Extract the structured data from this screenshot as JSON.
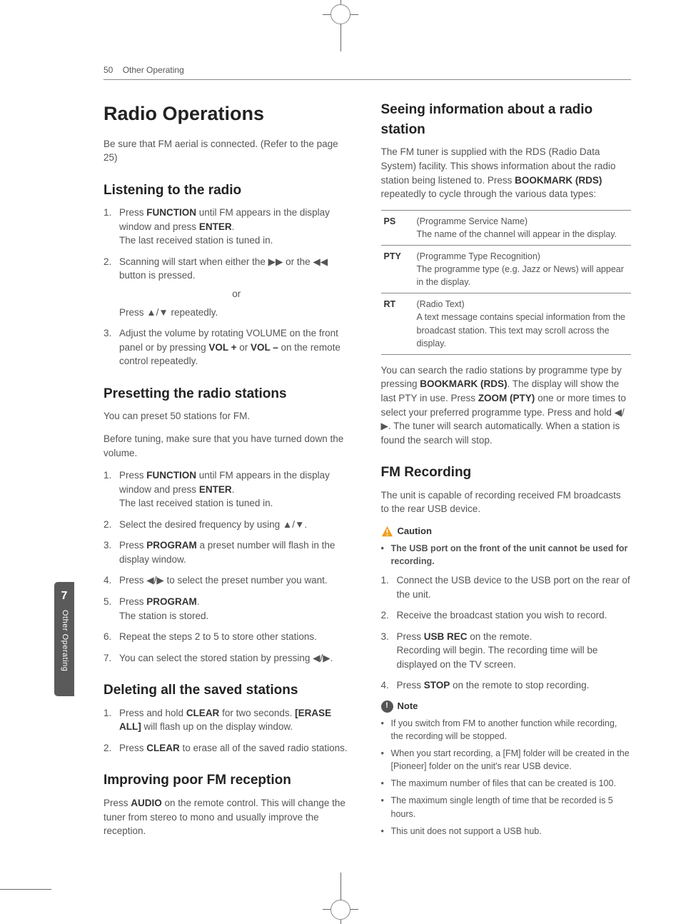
{
  "header": {
    "page_num": "50",
    "section": "Other Operating"
  },
  "sidetab": {
    "num": "7",
    "label": "Other Operating"
  },
  "left": {
    "h1": "Radio Operations",
    "intro": "Be sure that FM aerial is connected. (Refer to the page 25)",
    "listening": {
      "title": "Listening to the radio",
      "s1a": "Press ",
      "s1b": "FUNCTION",
      "s1c": " until FM appears in the display window and press ",
      "s1d": "ENTER",
      "s1e": ".\nThe last received station is tuned in.",
      "s2a": "Scanning will start when either the ▶▶ or the ◀◀ button is pressed.",
      "s2_or": "or",
      "s2b": "Press ▲/▼ repeatedly.",
      "s3a": "Adjust the volume by rotating VOLUME on the front panel or by pressing ",
      "s3b": "VOL +",
      "s3c": " or ",
      "s3d": "VOL –",
      "s3e": " on the remote control repeatedly."
    },
    "preset": {
      "title": "Presetting the radio stations",
      "p1": "You can preset 50 stations for FM.",
      "p2": "Before tuning, make sure that you have turned down the volume.",
      "s1a": "Press ",
      "s1b": "FUNCTION",
      "s1c": " until FM appears in the display window and press ",
      "s1d": "ENTER",
      "s1e": ".\nThe last received station is tuned in.",
      "s2": "Select the desired frequency by using ▲/▼.",
      "s3a": "Press ",
      "s3b": "PROGRAM",
      "s3c": " a preset number will flash in the display window.",
      "s4": "Press ◀/▶ to select the preset number you want.",
      "s5a": "Press ",
      "s5b": "PROGRAM",
      "s5c": ".\nThe station is stored.",
      "s6": "Repeat the steps 2 to 5 to store other stations.",
      "s7": "You can select the stored station by pressing ◀/▶."
    },
    "delete": {
      "title": "Deleting all the saved stations",
      "s1a": "Press and hold ",
      "s1b": "CLEAR",
      "s1c": " for two seconds. ",
      "s1d": "[ERASE ALL]",
      "s1e": " will flash up on the display window.",
      "s2a": "Press ",
      "s2b": "CLEAR",
      "s2c": " to erase all of the saved radio stations."
    },
    "improve": {
      "title": "Improving poor FM reception",
      "p_a": "Press ",
      "p_b": "AUDIO",
      "p_c": " on the remote control. This will change the tuner from stereo to mono and usually improve the reception."
    }
  },
  "right": {
    "info": {
      "title": "Seeing information about a radio station",
      "p_a": "The FM tuner is supplied with the RDS (Radio Data System) facility. This shows information about the radio station being listened to. Press ",
      "p_b": "BOOKMARK (RDS)",
      "p_c": " repeatedly to cycle through the various data types:",
      "rows": [
        {
          "k": "PS",
          "v": "(Programme Service Name)\nThe name of the channel will appear in the display."
        },
        {
          "k": "PTY",
          "v": "(Programme Type Recognition)\nThe programme type (e.g. Jazz or News) will appear in the display."
        },
        {
          "k": "RT",
          "v": "(Radio Text)\nA text message contains special information from the broadcast station. This text may scroll across the display."
        }
      ],
      "after_a": "You can search the radio stations by programme type by pressing ",
      "after_b": "BOOKMARK (RDS)",
      "after_c": ". The display will show the last PTY in use. Press ",
      "after_d": "ZOOM (PTY)",
      "after_e": " one or more times to select your preferred programme type. Press and hold ◀/▶. The tuner will search automatically. When a station is found the search will stop."
    },
    "rec": {
      "title": "FM Recording",
      "intro": "The unit is capable of recording received FM broadcasts to the rear USB device.",
      "caution_label": "Caution",
      "caution_item": "The USB port on the front of the unit cannot be used for recording.",
      "s1": "Connect the USB device to the USB port on the rear of the unit.",
      "s2": "Receive the broadcast station you wish to record.",
      "s3a": "Press ",
      "s3b": "USB REC",
      "s3c": " on the remote.\nRecording will begin. The recording time will be displayed on the TV screen.",
      "s4a": "Press ",
      "s4b": "STOP",
      "s4c": " on the remote to stop recording.",
      "note_label": "Note",
      "notes": [
        "If you switch from FM to another function while recording, the recording will be stopped.",
        "When you start recording, a [FM] folder will be created in the [Pioneer] folder on the unit's rear USB device.",
        "The maximum number of files that can be created is 100.",
        "The maximum single length of time that be recorded is 5 hours.",
        "This unit does not support a USB hub."
      ]
    }
  }
}
